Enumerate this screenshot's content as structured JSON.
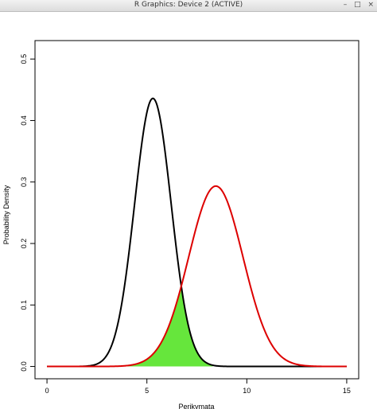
{
  "window": {
    "title": "R Graphics: Device 2 (ACTIVE)",
    "minimize_glyph": "–",
    "maximize_glyph": "□",
    "close_glyph": "×"
  },
  "chart_data": {
    "type": "line",
    "title": "",
    "xlabel": "Perikymata",
    "ylabel": "Probability Density",
    "xlim": [
      -0.6,
      15.6
    ],
    "ylim": [
      -0.02,
      0.53
    ],
    "xticks": [
      0,
      5,
      10,
      15
    ],
    "xtick_labels": [
      "0",
      "5",
      "10",
      "15"
    ],
    "yticks": [
      0.0,
      0.1,
      0.2,
      0.3,
      0.4,
      0.5
    ],
    "ytick_labels": [
      "0.0",
      "0.1",
      "0.2",
      "0.3",
      "0.4",
      "0.5"
    ],
    "grid": false,
    "legend": "none",
    "series": [
      {
        "distribution": "normal",
        "mean": 5.3,
        "sd": 0.915,
        "x_range": [
          0,
          15
        ],
        "color": "#000000"
      },
      {
        "distribution": "normal",
        "mean": 8.45,
        "sd": 1.36,
        "x_range": [
          0,
          15
        ],
        "color": "#dd0000"
      }
    ],
    "overlap_fill": {
      "description": "region under both curves",
      "color": "#66e63c",
      "x_range": [
        4,
        8.3
      ]
    }
  }
}
